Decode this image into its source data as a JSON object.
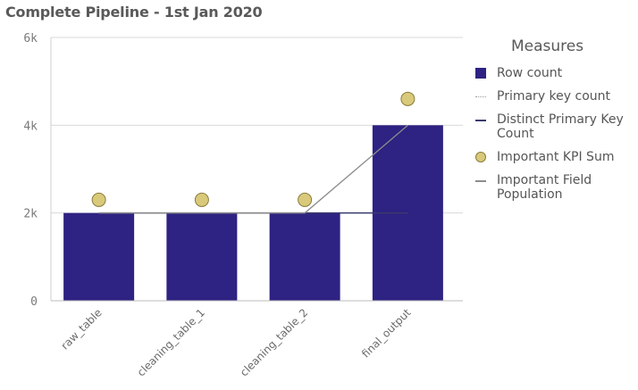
{
  "title": "Complete Pipeline - 1st Jan 2020",
  "legend": {
    "title": "Measures",
    "items": [
      {
        "label": "Row count",
        "kind": "bar",
        "color": "#2e2282"
      },
      {
        "label": "Primary key count",
        "kind": "line-dotted",
        "color": "#9a9a9a"
      },
      {
        "label": "Distinct Primary Key Count",
        "kind": "line",
        "color": "#3a3a6e"
      },
      {
        "label": "Important KPI Sum",
        "kind": "dot",
        "color": "#d9c97a"
      },
      {
        "label": "Important Field Population",
        "kind": "line",
        "color": "#8c8c8c"
      }
    ]
  },
  "chart_data": {
    "type": "bar",
    "categories": [
      "raw_table",
      "cleaning_table_1",
      "cleaning_table_2",
      "final_output"
    ],
    "ylim": [
      0,
      6000
    ],
    "yticks": [
      0,
      2000,
      4000,
      6000
    ],
    "ytick_labels": [
      "0",
      "2k",
      "4k",
      "6k"
    ],
    "grid": true,
    "legend_position": "right",
    "series": [
      {
        "name": "Row count",
        "type": "bar",
        "color": "#2e2282",
        "values": [
          2000,
          2000,
          2000,
          4000
        ]
      },
      {
        "name": "Primary key count",
        "type": "line",
        "color": "#9a9a9a",
        "values": [
          2000,
          2000,
          2000,
          2000
        ]
      },
      {
        "name": "Distinct Primary Key Count",
        "type": "line",
        "color": "#3a3a6e",
        "values": [
          2000,
          2000,
          2000,
          2000
        ]
      },
      {
        "name": "Important KPI Sum",
        "type": "scatter",
        "color": "#d9c97a",
        "values": [
          2300,
          2300,
          2300,
          4600
        ]
      },
      {
        "name": "Important Field Population",
        "type": "line",
        "color": "#8c8c8c",
        "values": [
          2000,
          2000,
          2000,
          4000
        ]
      }
    ]
  }
}
